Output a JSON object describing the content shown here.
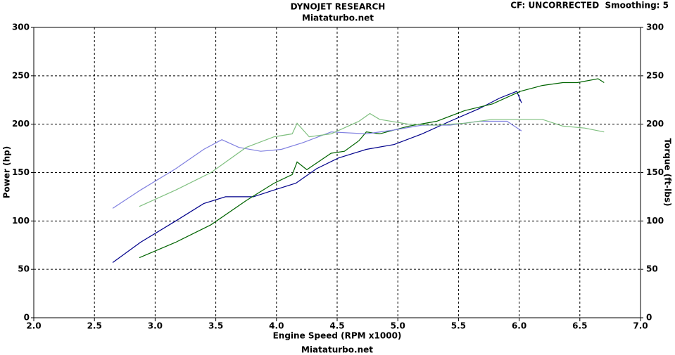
{
  "chart_data": {
    "type": "line",
    "title": "DYNOJET RESEARCH",
    "subtitle": "Miataturbo.net",
    "header_right": "CF: UNCORRECTED  Smoothing: 5",
    "footer": "Miataturbo.net",
    "x_label": "Engine Speed (RPM x1000)",
    "y_label": "Power (hp)",
    "y2_label": "Torque (ft-lbs)",
    "xlim": [
      2,
      7
    ],
    "xticks": [
      {
        "value": 2,
        "label": "2.0"
      },
      2.5,
      {
        "value": 3,
        "label": "3.0"
      },
      3.5,
      {
        "value": 4,
        "label": "4.0"
      },
      4.5,
      {
        "value": 5,
        "label": "5.0"
      },
      5.5,
      {
        "value": 6,
        "label": "6.0"
      },
      6.5,
      {
        "value": 7,
        "label": "7.0"
      }
    ],
    "ylim": [
      0,
      300
    ],
    "yticks": [
      0,
      50,
      100,
      150,
      200,
      250,
      300
    ],
    "y2lim": [
      0,
      300
    ],
    "y2ticks": [
      0,
      50,
      100,
      150,
      200,
      250,
      300
    ],
    "grid": true,
    "series": [
      {
        "color": "#00008b",
        "axis": "y",
        "x": [
          2.65,
          2.88,
          3.17,
          3.4,
          3.58,
          3.81,
          3.98,
          4.16,
          4.33,
          4.51,
          4.74,
          4.97,
          5.2,
          5.43,
          5.67,
          5.84,
          5.98,
          6.02
        ],
        "values": [
          57,
          78,
          100,
          118,
          125,
          125,
          132,
          139,
          154,
          165,
          174,
          179,
          190,
          203,
          216,
          227,
          234,
          222
        ]
      },
      {
        "color": "#006400",
        "axis": "y",
        "x": [
          2.87,
          3.17,
          3.46,
          3.75,
          3.98,
          4.13,
          4.17,
          4.25,
          4.45,
          4.56,
          4.68,
          4.74,
          4.85,
          5.09,
          5.32,
          5.55,
          5.78,
          6.01,
          6.19,
          6.36,
          6.48,
          6.65,
          6.7
        ],
        "values": [
          62,
          78,
          96,
          121,
          139,
          148,
          161,
          153,
          170,
          172,
          183,
          192,
          190,
          198,
          203,
          214,
          221,
          234,
          240,
          243,
          243,
          247,
          243
        ]
      },
      {
        "color": "#8080e0",
        "axis": "y2",
        "x": [
          2.65,
          2.88,
          3.17,
          3.4,
          3.55,
          3.69,
          3.87,
          4.04,
          4.22,
          4.45,
          4.74,
          4.97,
          5.2,
          5.43,
          5.67,
          5.9,
          6.02
        ],
        "values": [
          113,
          132,
          154,
          174,
          184,
          176,
          172,
          174,
          181,
          192,
          190,
          194,
          199,
          199,
          203,
          203,
          193
        ]
      },
      {
        "color": "#80c080",
        "axis": "y2",
        "x": [
          2.87,
          3.17,
          3.46,
          3.75,
          3.98,
          4.13,
          4.17,
          4.27,
          4.45,
          4.68,
          4.77,
          4.85,
          5.09,
          5.32,
          5.55,
          5.78,
          6.01,
          6.19,
          6.36,
          6.54,
          6.7
        ],
        "values": [
          115,
          132,
          150,
          176,
          187,
          190,
          201,
          187,
          190,
          203,
          211,
          205,
          200,
          199,
          201,
          205,
          205,
          205,
          198,
          196,
          192
        ]
      }
    ]
  }
}
